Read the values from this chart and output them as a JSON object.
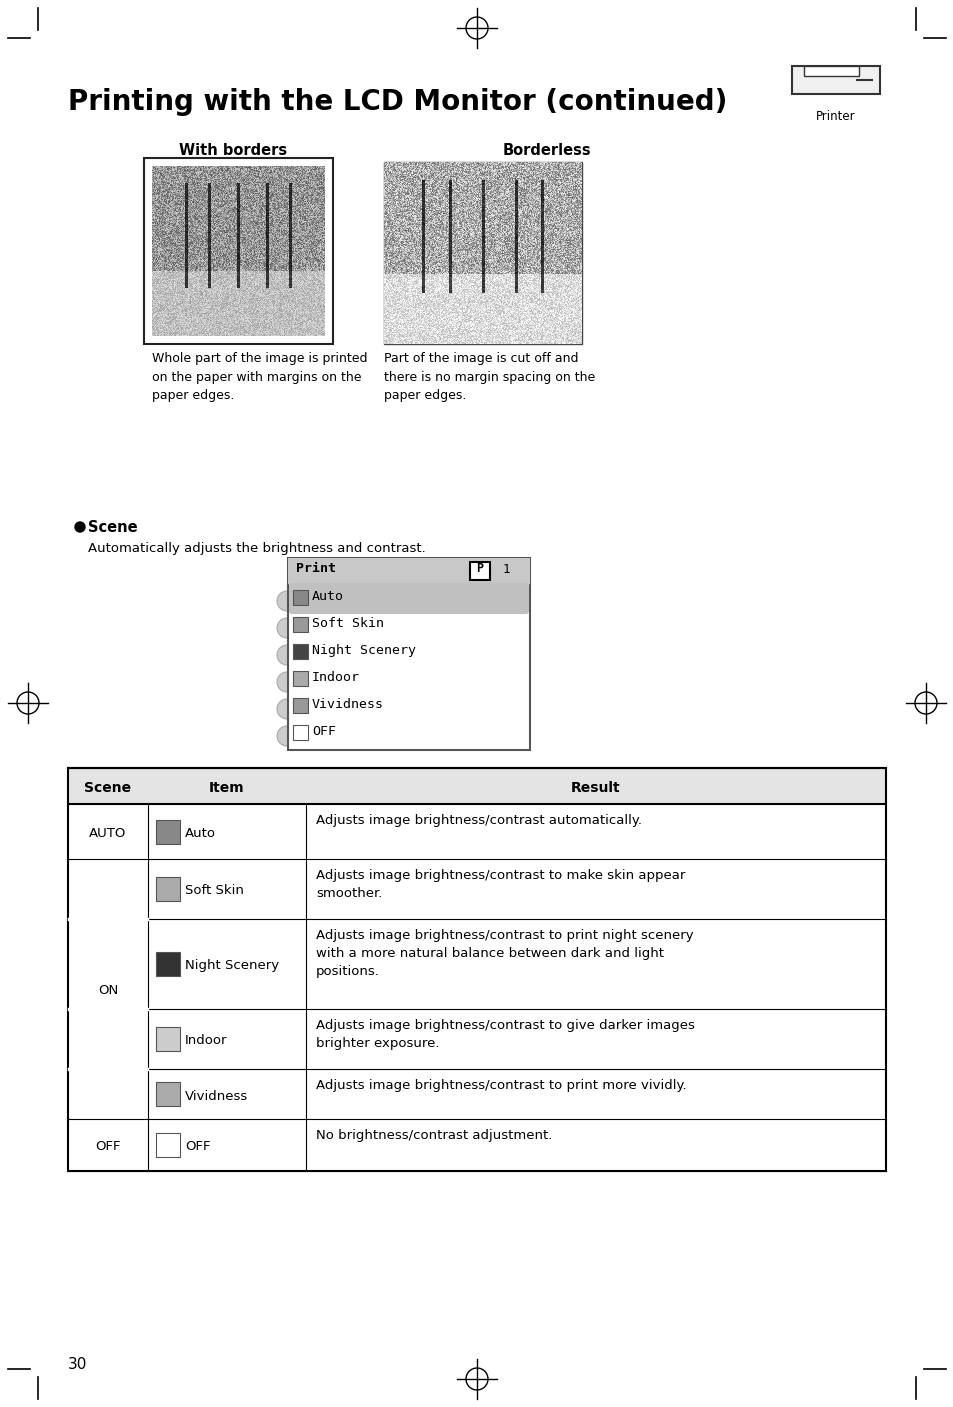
{
  "title": "Printing with the LCD Monitor (continued)",
  "page_number": "30",
  "bg_color": "#ffffff",
  "with_borders_label": "With borders",
  "borderless_label": "Borderless",
  "with_borders_caption": "Whole part of the image is printed\non the paper with margins on the\npaper edges.",
  "borderless_caption": "Part of the image is cut off and\nthere is no margin spacing on the\npaper edges.",
  "scene_heading": "Scene",
  "scene_desc": "Automatically adjusts the brightness and contrast.",
  "menu_items": [
    "Auto",
    "Soft Skin",
    "Night Scenery",
    "Indoor",
    "Vividness",
    "OFF"
  ],
  "menu_title": "Print",
  "table_headers": [
    "Scene",
    "Item",
    "Result"
  ],
  "table_rows": [
    [
      "AUTO",
      "Auto",
      "Adjusts image brightness/contrast automatically."
    ],
    [
      "ON",
      "Soft Skin",
      "Adjusts image brightness/contrast to make skin appear\nsmoother."
    ],
    [
      "",
      "Night Scenery",
      "Adjusts image brightness/contrast to print night scenery\nwith a more natural balance between dark and light\npositions."
    ],
    [
      "",
      "Indoor",
      "Adjusts image brightness/contrast to give darker images\nbrighter exposure."
    ],
    [
      "",
      "Vividness",
      "Adjusts image brightness/contrast to print more vividly."
    ],
    [
      "OFF",
      "OFF",
      "No brightness/contrast adjustment."
    ]
  ]
}
